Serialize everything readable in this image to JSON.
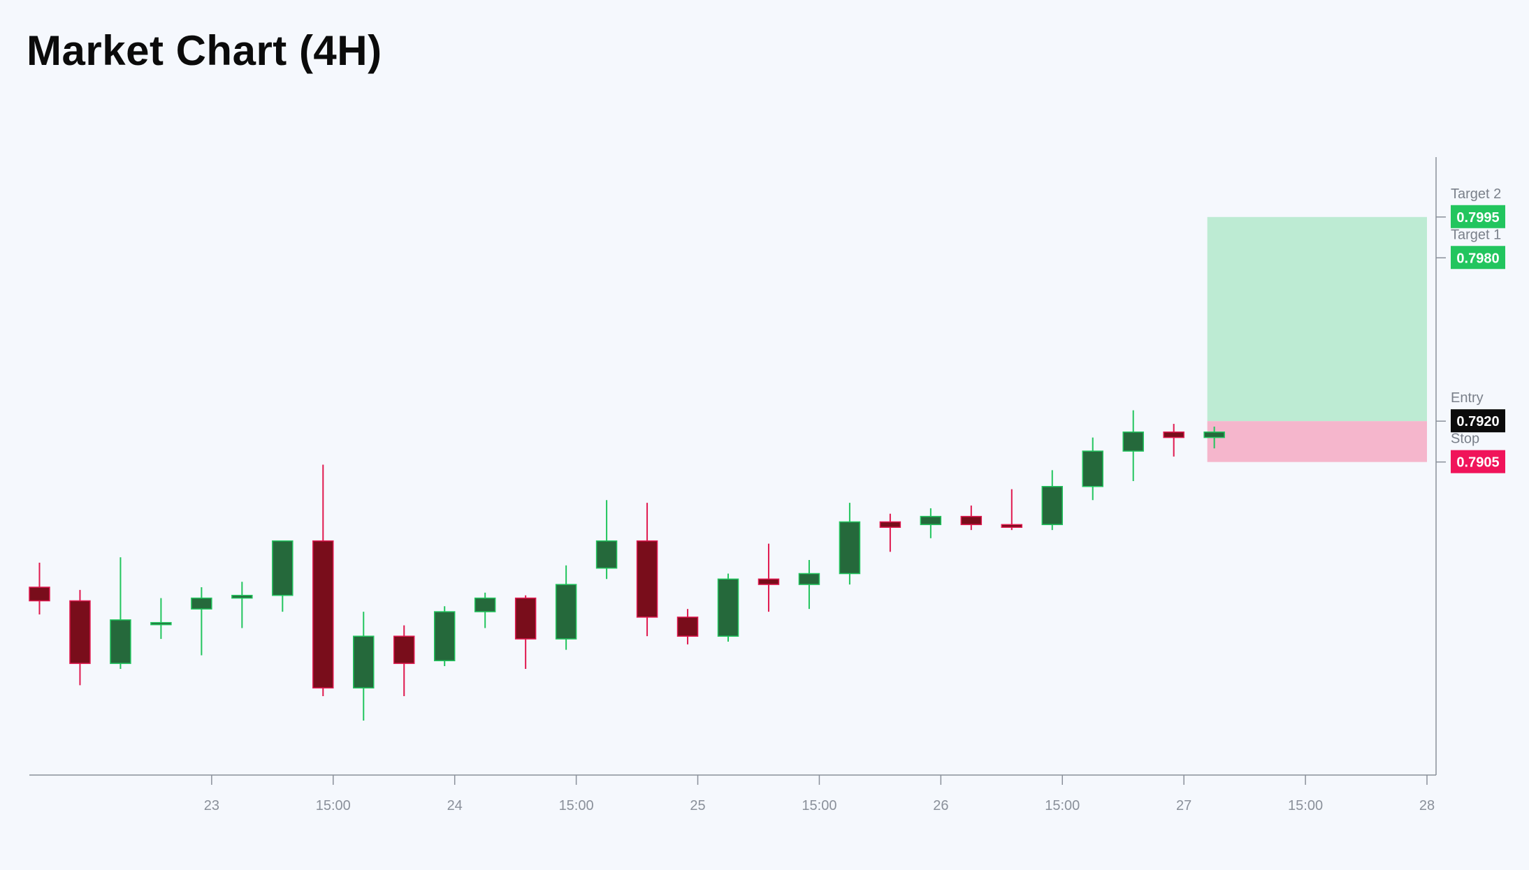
{
  "title": "Market Chart (4H)",
  "colors": {
    "background": "#f5f8fd",
    "bull_body": "#25693b",
    "bull_stroke": "#22c55e",
    "bear_body": "#790d1b",
    "bear_stroke": "#e0194f",
    "target_zone": "#bdebd3",
    "stop_zone": "#f5b6cc",
    "axis": "#8a909a",
    "target_tag": "#22c55e",
    "entry_tag": "#0b0b0b",
    "stop_tag": "#f0145a"
  },
  "chart_data": {
    "type": "candlestick",
    "title": "Market Chart (4H)",
    "x_ticks": [
      {
        "label": "23",
        "i": 4.25
      },
      {
        "label": "15:00",
        "i": 7.25
      },
      {
        "label": "24",
        "i": 10.25
      },
      {
        "label": "15:00",
        "i": 13.25
      },
      {
        "label": "25",
        "i": 16.25
      },
      {
        "label": "15:00",
        "i": 19.25
      },
      {
        "label": "26",
        "i": 22.25
      },
      {
        "label": "15:00",
        "i": 25.25
      },
      {
        "label": "27",
        "i": 28.25
      },
      {
        "label": "15:00",
        "i": 31.25
      },
      {
        "label": "28",
        "i": 34.25
      }
    ],
    "x_range": [
      -0.25,
      34.25
    ],
    "ylim": [
      0.779,
      0.8017
    ],
    "candles": [
      {
        "o": 0.7859,
        "h": 0.7868,
        "l": 0.7849,
        "c": 0.7854
      },
      {
        "o": 0.7854,
        "h": 0.7858,
        "l": 0.7823,
        "c": 0.7831
      },
      {
        "o": 0.7831,
        "h": 0.787,
        "l": 0.7829,
        "c": 0.7847
      },
      {
        "o": 0.7846,
        "h": 0.7855,
        "l": 0.784,
        "c": 0.7846
      },
      {
        "o": 0.7851,
        "h": 0.7859,
        "l": 0.7834,
        "c": 0.7855
      },
      {
        "o": 0.7855,
        "h": 0.7861,
        "l": 0.7844,
        "c": 0.7856
      },
      {
        "o": 0.7856,
        "h": 0.7876,
        "l": 0.785,
        "c": 0.7876
      },
      {
        "o": 0.7876,
        "h": 0.7904,
        "l": 0.7819,
        "c": 0.7822
      },
      {
        "o": 0.7822,
        "h": 0.785,
        "l": 0.781,
        "c": 0.7841
      },
      {
        "o": 0.7841,
        "h": 0.7845,
        "l": 0.7819,
        "c": 0.7831
      },
      {
        "o": 0.7832,
        "h": 0.7852,
        "l": 0.783,
        "c": 0.785
      },
      {
        "o": 0.785,
        "h": 0.7857,
        "l": 0.7844,
        "c": 0.7855
      },
      {
        "o": 0.7855,
        "h": 0.7856,
        "l": 0.7829,
        "c": 0.784
      },
      {
        "o": 0.784,
        "h": 0.7867,
        "l": 0.7836,
        "c": 0.786
      },
      {
        "o": 0.7866,
        "h": 0.7891,
        "l": 0.7862,
        "c": 0.7876
      },
      {
        "o": 0.7876,
        "h": 0.789,
        "l": 0.7841,
        "c": 0.7848
      },
      {
        "o": 0.7848,
        "h": 0.7851,
        "l": 0.7838,
        "c": 0.7841
      },
      {
        "o": 0.7841,
        "h": 0.7864,
        "l": 0.7839,
        "c": 0.7862
      },
      {
        "o": 0.7862,
        "h": 0.7875,
        "l": 0.785,
        "c": 0.786
      },
      {
        "o": 0.786,
        "h": 0.7869,
        "l": 0.7851,
        "c": 0.7864
      },
      {
        "o": 0.7864,
        "h": 0.789,
        "l": 0.786,
        "c": 0.7883
      },
      {
        "o": 0.7883,
        "h": 0.7886,
        "l": 0.7872,
        "c": 0.7881
      },
      {
        "o": 0.7882,
        "h": 0.7888,
        "l": 0.7877,
        "c": 0.7885
      },
      {
        "o": 0.7885,
        "h": 0.7889,
        "l": 0.788,
        "c": 0.7882
      },
      {
        "o": 0.7882,
        "h": 0.7895,
        "l": 0.788,
        "c": 0.7881
      },
      {
        "o": 0.7882,
        "h": 0.7902,
        "l": 0.788,
        "c": 0.7896
      },
      {
        "o": 0.7896,
        "h": 0.7914,
        "l": 0.7891,
        "c": 0.7909
      },
      {
        "o": 0.7909,
        "h": 0.7924,
        "l": 0.7898,
        "c": 0.7916
      },
      {
        "o": 0.7916,
        "h": 0.7919,
        "l": 0.7907,
        "c": 0.7914
      },
      {
        "o": 0.7914,
        "h": 0.7918,
        "l": 0.791,
        "c": 0.7916
      }
    ],
    "trade_plan": {
      "zone_start_i": 29,
      "levels": [
        {
          "label": "Target 2",
          "value": 0.7995,
          "display": "0.7995",
          "kind": "target"
        },
        {
          "label": "Target 1",
          "value": 0.798,
          "display": "0.7980",
          "kind": "target"
        },
        {
          "label": "Entry",
          "value": 0.792,
          "display": "0.7920",
          "kind": "entry"
        },
        {
          "label": "Stop",
          "value": 0.7905,
          "display": "0.7905",
          "kind": "stop"
        }
      ]
    }
  }
}
